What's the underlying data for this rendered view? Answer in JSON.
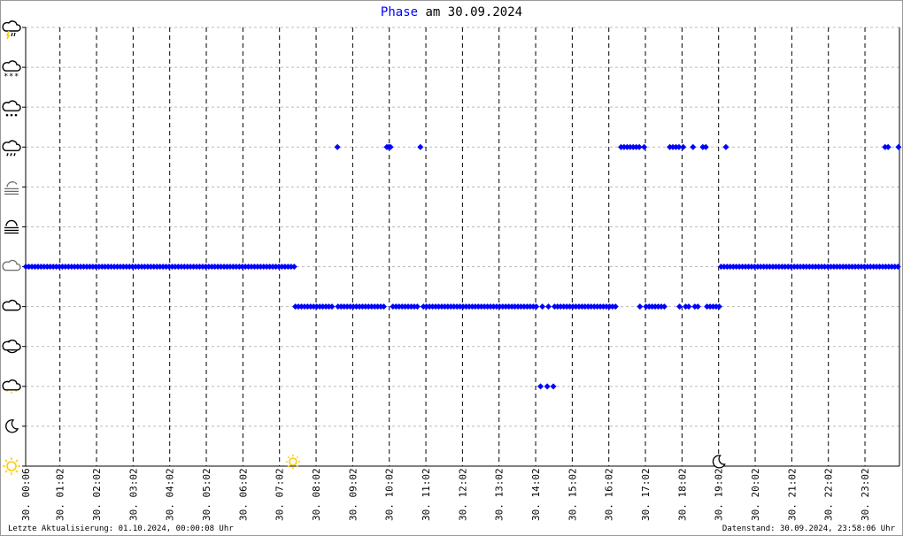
{
  "title": {
    "highlight": "Phase",
    "rest": " am 30.09.2024"
  },
  "footer": {
    "last_update": "Letzte Aktualisierung: 01.10.2024, 00:00:08 Uhr",
    "data_state": "Datenstand: 30.09.2024, 23:58:06 Uhr"
  },
  "colors": {
    "series": "#0000ff",
    "grid_h": "#bbbbbb",
    "grid_v": "#000000",
    "sun": "#ffcc00"
  },
  "chart_data": {
    "type": "scatter",
    "title": "Phase am 30.09.2024",
    "x_unit": "time of day",
    "xlim": [
      "00:00",
      "24:00"
    ],
    "x_ticks": [
      "30. 00:06",
      "30. 01:02",
      "30. 02:02",
      "30. 03:02",
      "30. 04:02",
      "30. 05:02",
      "30. 06:02",
      "30. 07:02",
      "30. 08:02",
      "30. 09:02",
      "30. 10:02",
      "30. 11:02",
      "30. 12:02",
      "30. 13:02",
      "30. 14:02",
      "30. 15:02",
      "30. 16:02",
      "30. 17:02",
      "30. 18:02",
      "30. 19:02",
      "30. 20:02",
      "30. 21:02",
      "30. 22:02",
      "30. 23:02"
    ],
    "y_levels": [
      "sun-icon",
      "moon-icon",
      "sun-cloud-icon",
      "moon-cloud-icon",
      "cloud-icon",
      "overcast-icon",
      "fog-icon",
      "fog-partly-icon",
      "rain-icon",
      "sleet-icon",
      "snow-icon",
      "thunderstorm-icon"
    ],
    "grid": true,
    "events": [
      {
        "icon": "sunrise-icon",
        "time": "07:24"
      },
      {
        "icon": "sunset-moon-icon",
        "time": "19:02"
      }
    ],
    "runs": [
      {
        "level": 5,
        "from": "00:06",
        "to": "07:26",
        "interval_min": 5
      },
      {
        "level": 4,
        "from": "07:28",
        "to": "19:04",
        "interval_min": 5
      },
      {
        "level": 5,
        "from": "19:06",
        "to": "23:58",
        "interval_min": 5
      }
    ],
    "points": [
      {
        "level": 8,
        "times": [
          "08:37",
          "09:58",
          "10:01",
          "10:04",
          "10:53",
          "16:22",
          "16:27",
          "16:32",
          "16:37",
          "16:42",
          "16:47",
          "16:52",
          "17:00",
          "17:42",
          "17:47",
          "17:52",
          "17:57",
          "18:04",
          "18:20",
          "18:36",
          "18:41",
          "19:14",
          "23:35",
          "23:40",
          "23:57"
        ]
      },
      {
        "level": 2,
        "times": [
          "14:10",
          "14:21",
          "14:31"
        ]
      }
    ]
  }
}
